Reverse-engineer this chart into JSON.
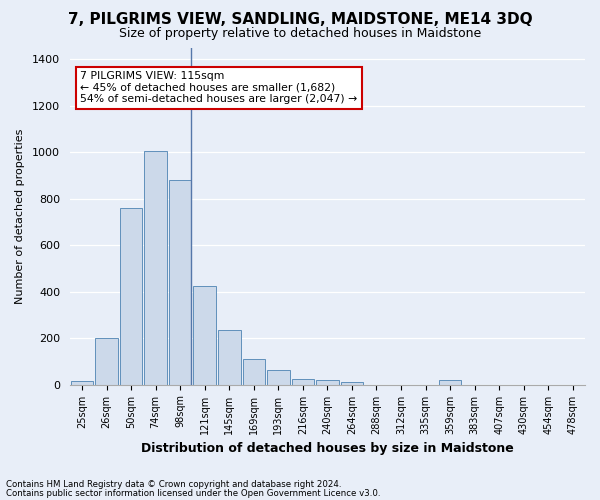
{
  "title": "7, PILGRIMS VIEW, SANDLING, MAIDSTONE, ME14 3DQ",
  "subtitle": "Size of property relative to detached houses in Maidstone",
  "xlabel": "Distribution of detached houses by size in Maidstone",
  "ylabel": "Number of detached properties",
  "footnote1": "Contains HM Land Registry data © Crown copyright and database right 2024.",
  "footnote2": "Contains public sector information licensed under the Open Government Licence v3.0.",
  "bin_labels": [
    "25sqm",
    "26sqm",
    "50sqm",
    "74sqm",
    "98sqm",
    "121sqm",
    "145sqm",
    "169sqm",
    "193sqm",
    "216sqm",
    "240sqm",
    "264sqm",
    "288sqm",
    "312sqm",
    "335sqm",
    "359sqm",
    "383sqm",
    "407sqm",
    "430sqm",
    "454sqm",
    "478sqm"
  ],
  "bar_values": [
    15,
    200,
    760,
    1005,
    880,
    425,
    235,
    110,
    65,
    25,
    20,
    10,
    0,
    0,
    0,
    20,
    0,
    0,
    0,
    0,
    0
  ],
  "bar_color": "#ccd9ea",
  "bar_edge_color": "#6090bb",
  "ylim": [
    0,
    1450
  ],
  "yticks": [
    0,
    200,
    400,
    600,
    800,
    1000,
    1200,
    1400
  ],
  "annotation_title": "7 PILGRIMS VIEW: 115sqm",
  "annotation_line1": "← 45% of detached houses are smaller (1,682)",
  "annotation_line2": "54% of semi-detached houses are larger (2,047) →",
  "annotation_box_color": "#ffffff",
  "annotation_box_edge": "#cc0000",
  "property_line_bin": 4,
  "background_color": "#e8eef8",
  "grid_color": "#ffffff",
  "title_fontsize": 11,
  "subtitle_fontsize": 9
}
